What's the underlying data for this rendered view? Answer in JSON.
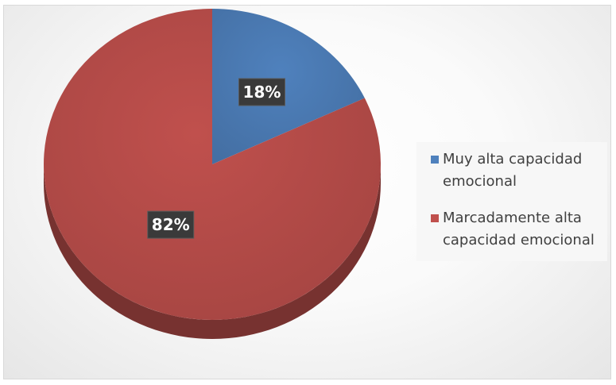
{
  "chart_data": {
    "type": "pie",
    "title": "",
    "slices": [
      {
        "label": "Muy alta capacidad emocional",
        "value": 18,
        "data_label": "18%",
        "color": "#4f81bd"
      },
      {
        "label": "Marcadamente alta capacidad emocional",
        "value": 82,
        "data_label": "82%",
        "color": "#c0504d"
      }
    ],
    "legend": {
      "placement": "right",
      "entries": [
        {
          "label": "Muy alta capacidad emocional",
          "color": "#4f81bd"
        },
        {
          "label": "Marcadamente alta capacidad emocional",
          "color": "#c0504d"
        }
      ]
    },
    "style": "3d-tilted"
  }
}
